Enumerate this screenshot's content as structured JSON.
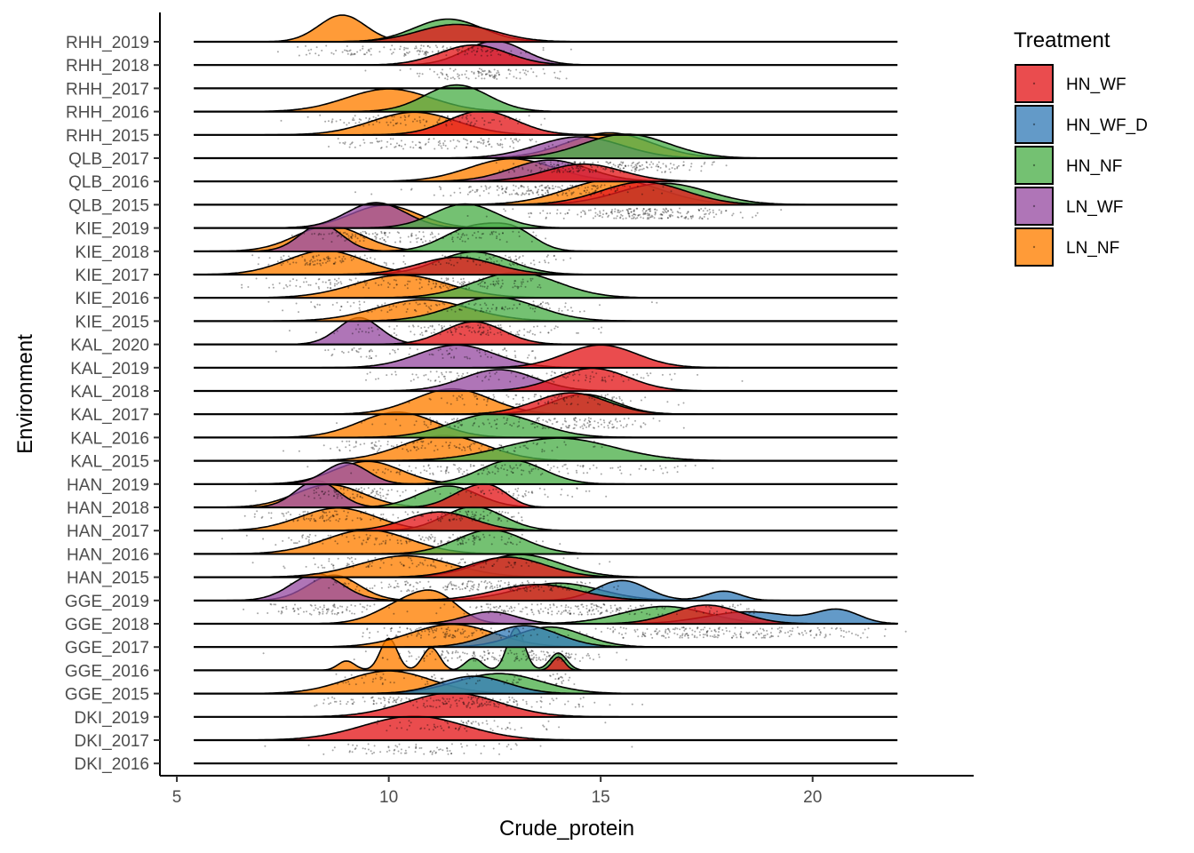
{
  "chart_data": {
    "type": "ridgeline",
    "xlabel": "Crude_protein",
    "ylabel": "Environment",
    "xlim": [
      4.6,
      23.8
    ],
    "x_ticks": [
      5,
      10,
      15,
      20
    ],
    "grid": false,
    "legend": {
      "title": "Treatment",
      "position": "right",
      "entries": [
        {
          "name": "HN_WF",
          "color": "#E41A1C"
        },
        {
          "name": "HN_WF_D",
          "color": "#377EB8"
        },
        {
          "name": "HN_NF",
          "color": "#4DAF4A"
        },
        {
          "name": "LN_WF",
          "color": "#984EA3"
        },
        {
          "name": "LN_NF",
          "color": "#FF7F00"
        }
      ]
    },
    "environments": [
      "RHH_2019",
      "RHH_2018",
      "RHH_2017",
      "RHH_2016",
      "RHH_2015",
      "QLB_2017",
      "QLB_2016",
      "QLB_2015",
      "KIE_2019",
      "KIE_2018",
      "KIE_2017",
      "KIE_2016",
      "KIE_2015",
      "KAL_2020",
      "KAL_2019",
      "KAL_2018",
      "KAL_2017",
      "KAL_2016",
      "KAL_2015",
      "HAN_2019",
      "HAN_2018",
      "HAN_2017",
      "HAN_2016",
      "HAN_2015",
      "GGE_2019",
      "GGE_2018",
      "GGE_2017",
      "GGE_2016",
      "GGE_2015",
      "DKI_2019",
      "DKI_2017",
      "DKI_2016"
    ],
    "series": [
      {
        "env": "RHH_2019",
        "treatment": "LN_NF",
        "peaks": [
          [
            8.9,
            0.55,
            1.0
          ]
        ]
      },
      {
        "env": "RHH_2019",
        "treatment": "HN_NF",
        "peaks": [
          [
            11.4,
            0.8,
            0.85
          ]
        ]
      },
      {
        "env": "RHH_2019",
        "treatment": "HN_WF",
        "peaks": [
          [
            11.6,
            0.9,
            0.65
          ]
        ]
      },
      {
        "env": "RHH_2018",
        "treatment": "HN_WF",
        "peaks": [
          [
            12.0,
            0.8,
            0.75
          ]
        ]
      },
      {
        "env": "RHH_2018",
        "treatment": "LN_WF",
        "peaks": [
          [
            12.5,
            0.7,
            0.9
          ]
        ]
      },
      {
        "env": "RHH_2016",
        "treatment": "LN_NF",
        "peaks": [
          [
            10.0,
            1.0,
            0.85
          ]
        ]
      },
      {
        "env": "RHH_2016",
        "treatment": "HN_NF",
        "peaks": [
          [
            11.6,
            0.75,
            1.0
          ]
        ]
      },
      {
        "env": "RHH_2015",
        "treatment": "LN_NF",
        "peaks": [
          [
            10.6,
            1.0,
            0.85
          ]
        ]
      },
      {
        "env": "RHH_2015",
        "treatment": "HN_WF",
        "peaks": [
          [
            12.2,
            0.8,
            0.9
          ]
        ]
      },
      {
        "env": "QLB_2017",
        "treatment": "LN_WF",
        "peaks": [
          [
            14.5,
            1.0,
            0.8
          ]
        ]
      },
      {
        "env": "QLB_2017",
        "treatment": "HN_NF",
        "peaks": [
          [
            15.6,
            1.0,
            0.9
          ]
        ]
      },
      {
        "env": "QLB_2017",
        "treatment": "LN_NF",
        "peaks": [
          [
            15.2,
            1.0,
            0.95
          ]
        ]
      },
      {
        "env": "QLB_2016",
        "treatment": "LN_WF",
        "peaks": [
          [
            13.8,
            0.9,
            0.8
          ]
        ]
      },
      {
        "env": "QLB_2016",
        "treatment": "HN_WF",
        "peaks": [
          [
            14.6,
            0.9,
            0.65
          ]
        ]
      },
      {
        "env": "QLB_2016",
        "treatment": "LN_NF",
        "peaks": [
          [
            12.9,
            1.0,
            0.85
          ]
        ]
      },
      {
        "env": "QLB_2015",
        "treatment": "HN_WF",
        "peaks": [
          [
            16.0,
            1.0,
            0.85
          ]
        ]
      },
      {
        "env": "QLB_2015",
        "treatment": "HN_NF",
        "peaks": [
          [
            16.5,
            1.05,
            0.8
          ]
        ]
      },
      {
        "env": "QLB_2015",
        "treatment": "LN_NF",
        "peaks": [
          [
            15.3,
            1.1,
            0.95
          ]
        ]
      },
      {
        "env": "KIE_2019",
        "treatment": "LN_WF",
        "peaks": [
          [
            9.7,
            0.7,
            0.95
          ]
        ]
      },
      {
        "env": "KIE_2019",
        "treatment": "LN_NF",
        "peaks": [
          [
            9.9,
            0.8,
            0.85
          ]
        ]
      },
      {
        "env": "KIE_2019",
        "treatment": "HN_NF",
        "peaks": [
          [
            11.8,
            0.75,
            0.9
          ]
        ]
      },
      {
        "env": "KIE_2018",
        "treatment": "LN_WF",
        "peaks": [
          [
            8.4,
            0.5,
            1.0
          ]
        ]
      },
      {
        "env": "KIE_2018",
        "treatment": "LN_NF",
        "peaks": [
          [
            8.6,
            0.8,
            0.95
          ]
        ]
      },
      {
        "env": "KIE_2018",
        "treatment": "HN_NF",
        "peaks": [
          [
            12.0,
            0.7,
            0.9
          ],
          [
            13.0,
            0.5,
            0.6
          ]
        ]
      },
      {
        "env": "KIE_2017",
        "treatment": "LN_NF",
        "peaks": [
          [
            8.5,
            0.9,
            0.9
          ]
        ]
      },
      {
        "env": "KIE_2017",
        "treatment": "HN_WF",
        "peaks": [
          [
            11.6,
            0.9,
            0.65
          ]
        ]
      },
      {
        "env": "KIE_2017",
        "treatment": "HN_NF",
        "peaks": [
          [
            12.0,
            0.85,
            0.85
          ]
        ]
      },
      {
        "env": "KIE_2016",
        "treatment": "LN_NF",
        "peaks": [
          [
            10.3,
            1.1,
            0.85
          ]
        ]
      },
      {
        "env": "KIE_2016",
        "treatment": "HN_NF",
        "peaks": [
          [
            13.0,
            1.0,
            0.95
          ]
        ]
      },
      {
        "env": "KIE_2015",
        "treatment": "LN_NF",
        "peaks": [
          [
            10.8,
            1.1,
            0.8
          ]
        ]
      },
      {
        "env": "KIE_2015",
        "treatment": "HN_NF",
        "peaks": [
          [
            12.5,
            1.0,
            0.9
          ]
        ]
      },
      {
        "env": "KAL_2020",
        "treatment": "LN_WF",
        "peaks": [
          [
            9.3,
            0.5,
            1.0
          ]
        ]
      },
      {
        "env": "KAL_2020",
        "treatment": "HN_WF",
        "peaks": [
          [
            12.0,
            0.7,
            0.85
          ]
        ]
      },
      {
        "env": "KAL_2019",
        "treatment": "LN_WF",
        "peaks": [
          [
            11.6,
            0.9,
            0.85
          ]
        ]
      },
      {
        "env": "KAL_2019",
        "treatment": "HN_WF",
        "peaks": [
          [
            15.0,
            0.85,
            0.85
          ]
        ]
      },
      {
        "env": "KAL_2018",
        "treatment": "LN_WF",
        "peaks": [
          [
            12.6,
            0.85,
            0.8
          ]
        ]
      },
      {
        "env": "KAL_2018",
        "treatment": "HN_WF",
        "peaks": [
          [
            14.8,
            0.85,
            0.85
          ]
        ]
      },
      {
        "env": "KAL_2017",
        "treatment": "HN_WF",
        "peaks": [
          [
            14.3,
            0.85,
            0.8
          ]
        ]
      },
      {
        "env": "KAL_2017",
        "treatment": "HN_NF",
        "peaks": [
          [
            14.6,
            0.75,
            0.75
          ]
        ]
      },
      {
        "env": "KAL_2017",
        "treatment": "LN_NF",
        "peaks": [
          [
            11.5,
            0.9,
            0.95
          ]
        ]
      },
      {
        "env": "KAL_2016",
        "treatment": "LN_NF",
        "peaks": [
          [
            10.2,
            0.9,
            0.95
          ]
        ]
      },
      {
        "env": "KAL_2016",
        "treatment": "HN_NF",
        "peaks": [
          [
            12.5,
            1.0,
            0.9
          ]
        ]
      },
      {
        "env": "KAL_2015",
        "treatment": "LN_NF",
        "peaks": [
          [
            11.3,
            1.0,
            0.95
          ]
        ]
      },
      {
        "env": "KAL_2015",
        "treatment": "HN_NF",
        "peaks": [
          [
            14.0,
            1.3,
            0.85
          ]
        ]
      },
      {
        "env": "HAN_2019",
        "treatment": "LN_WF",
        "peaks": [
          [
            9.0,
            0.5,
            0.8
          ]
        ]
      },
      {
        "env": "HAN_2019",
        "treatment": "LN_NF",
        "peaks": [
          [
            9.5,
            0.8,
            0.85
          ]
        ]
      },
      {
        "env": "HAN_2019",
        "treatment": "HN_NF",
        "peaks": [
          [
            12.9,
            0.75,
            0.9
          ]
        ]
      },
      {
        "env": "HAN_2018",
        "treatment": "LN_WF",
        "peaks": [
          [
            8.3,
            0.5,
            1.0
          ]
        ]
      },
      {
        "env": "HAN_2018",
        "treatment": "LN_NF",
        "peaks": [
          [
            8.6,
            0.8,
            0.85
          ]
        ]
      },
      {
        "env": "HAN_2018",
        "treatment": "HN_WF",
        "peaks": [
          [
            11.9,
            0.5,
            0.6
          ],
          [
            12.5,
            0.4,
            0.5
          ]
        ]
      },
      {
        "env": "HAN_2018",
        "treatment": "HN_NF",
        "peaks": [
          [
            11.4,
            0.7,
            0.8
          ]
        ]
      },
      {
        "env": "HAN_2017",
        "treatment": "LN_NF",
        "peaks": [
          [
            8.8,
            0.9,
            0.85
          ]
        ]
      },
      {
        "env": "HAN_2017",
        "treatment": "HN_WF",
        "peaks": [
          [
            11.2,
            0.8,
            0.7
          ]
        ]
      },
      {
        "env": "HAN_2017",
        "treatment": "HN_NF",
        "peaks": [
          [
            12.0,
            0.7,
            0.9
          ]
        ]
      },
      {
        "env": "HAN_2016",
        "treatment": "LN_NF",
        "peaks": [
          [
            9.5,
            1.0,
            0.9
          ]
        ]
      },
      {
        "env": "HAN_2016",
        "treatment": "HN_NF",
        "peaks": [
          [
            12.4,
            0.8,
            0.9
          ]
        ]
      },
      {
        "env": "HAN_2015",
        "treatment": "LN_NF",
        "peaks": [
          [
            10.4,
            1.1,
            0.8
          ]
        ]
      },
      {
        "env": "HAN_2015",
        "treatment": "HN_WF",
        "peaks": [
          [
            12.8,
            0.9,
            0.75
          ]
        ]
      },
      {
        "env": "HAN_2015",
        "treatment": "HN_NF",
        "peaks": [
          [
            13.1,
            0.95,
            0.85
          ]
        ]
      },
      {
        "env": "GGE_2019",
        "treatment": "LN_WF",
        "peaks": [
          [
            8.3,
            0.6,
            1.0
          ]
        ]
      },
      {
        "env": "GGE_2019",
        "treatment": "LN_NF",
        "peaks": [
          [
            8.7,
            0.6,
            0.95
          ]
        ]
      },
      {
        "env": "GGE_2019",
        "treatment": "HN_WF",
        "peaks": [
          [
            13.5,
            1.0,
            0.6
          ]
        ]
      },
      {
        "env": "GGE_2019",
        "treatment": "HN_NF",
        "peaks": [
          [
            14.0,
            1.0,
            0.65
          ]
        ]
      },
      {
        "env": "GGE_2019",
        "treatment": "HN_WF_D",
        "peaks": [
          [
            15.5,
            0.6,
            0.75
          ],
          [
            17.9,
            0.4,
            0.35
          ]
        ]
      },
      {
        "env": "GGE_2018",
        "treatment": "LN_NF",
        "peaks": [
          [
            10.5,
            0.7,
            0.85
          ],
          [
            11.2,
            0.5,
            0.65
          ]
        ]
      },
      {
        "env": "GGE_2018",
        "treatment": "LN_WF",
        "peaks": [
          [
            12.4,
            0.6,
            0.45
          ]
        ]
      },
      {
        "env": "GGE_2018",
        "treatment": "HN_NF",
        "peaks": [
          [
            16.5,
            1.0,
            0.65
          ]
        ]
      },
      {
        "env": "GGE_2018",
        "treatment": "HN_WF",
        "peaks": [
          [
            17.5,
            0.8,
            0.7
          ]
        ]
      },
      {
        "env": "GGE_2018",
        "treatment": "HN_WF_D",
        "peaks": [
          [
            18.5,
            1.0,
            0.45
          ],
          [
            20.6,
            0.5,
            0.5
          ]
        ]
      },
      {
        "env": "GGE_2017",
        "treatment": "LN_NF",
        "peaks": [
          [
            11.5,
            1.0,
            0.85
          ]
        ]
      },
      {
        "env": "GGE_2017",
        "treatment": "HN_WF_D",
        "peaks": [
          [
            13.2,
            0.8,
            0.8
          ]
        ]
      },
      {
        "env": "GGE_2017",
        "treatment": "HN_NF",
        "peaks": [
          [
            13.8,
            0.8,
            0.75
          ]
        ]
      },
      {
        "env": "GGE_2016",
        "treatment": "LN_NF",
        "peaks": [
          [
            9.0,
            0.2,
            0.35
          ],
          [
            10.0,
            0.2,
            1.2
          ],
          [
            11.0,
            0.2,
            0.85
          ]
        ]
      },
      {
        "env": "GGE_2016",
        "treatment": "HN_NF",
        "peaks": [
          [
            12.0,
            0.2,
            0.45
          ],
          [
            13.0,
            0.2,
            1.6
          ],
          [
            14.0,
            0.2,
            0.65
          ]
        ]
      },
      {
        "env": "GGE_2016",
        "treatment": "HN_WF",
        "peaks": [
          [
            14.0,
            0.15,
            0.5
          ]
        ]
      },
      {
        "env": "GGE_2015",
        "treatment": "LN_NF",
        "peaks": [
          [
            10.0,
            1.0,
            0.85
          ]
        ]
      },
      {
        "env": "GGE_2015",
        "treatment": "HN_WF_D",
        "peaks": [
          [
            12.0,
            0.8,
            0.65
          ]
        ]
      },
      {
        "env": "GGE_2015",
        "treatment": "HN_NF",
        "peaks": [
          [
            12.6,
            1.0,
            0.75
          ]
        ]
      },
      {
        "env": "DKI_2019",
        "treatment": "HN_WF",
        "peaks": [
          [
            11.5,
            1.1,
            0.9
          ]
        ]
      },
      {
        "env": "DKI_2017",
        "treatment": "HN_WF",
        "peaks": [
          [
            10.6,
            1.2,
            0.9
          ]
        ]
      }
    ]
  }
}
